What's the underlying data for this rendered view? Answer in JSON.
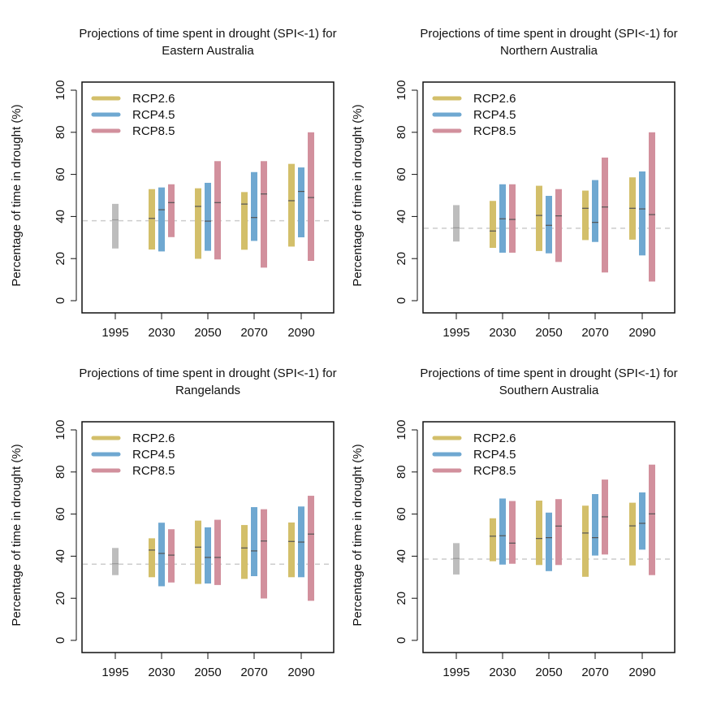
{
  "chart_data": [
    {
      "type": "bar",
      "subtype": "range-bars-with-median",
      "title": "Projections of time spent in drought (SPI<-1) for",
      "subtitle": "Eastern Australia",
      "xlabel": "",
      "ylabel": "Percentage of time in drought (%)",
      "ylim": [
        0,
        100
      ],
      "yticks": [
        0,
        20,
        40,
        60,
        80,
        100
      ],
      "categories": [
        "1995",
        "2030",
        "2050",
        "2070",
        "2090"
      ],
      "baseline_reference": 38,
      "baseline": {
        "name": "1995",
        "min": 24.8,
        "median": 38.4,
        "max": 46
      },
      "series": [
        {
          "name": "RCP2.6",
          "color": "#d3bf6a",
          "min": [
            null,
            24.3,
            19.9,
            24.2,
            25.7
          ],
          "median": [
            null,
            39.1,
            44.8,
            45.9,
            47.5
          ],
          "max": [
            null,
            53,
            53.4,
            51.6,
            65
          ]
        },
        {
          "name": "RCP4.5",
          "color": "#6fa8d1",
          "min": [
            null,
            23.4,
            23.7,
            28.4,
            30.1
          ],
          "median": [
            null,
            43.2,
            37.8,
            39.5,
            51.9
          ],
          "max": [
            null,
            53.8,
            56,
            61.1,
            63.3
          ]
        },
        {
          "name": "RCP8.5",
          "color": "#d2909d",
          "min": [
            null,
            30.2,
            19.6,
            15.7,
            18.9
          ],
          "median": [
            null,
            46.6,
            46.6,
            50.7,
            49
          ],
          "max": [
            null,
            55.3,
            66.3,
            66.3,
            80
          ]
        }
      ],
      "legend": "top-left",
      "grid": false
    },
    {
      "type": "bar",
      "subtype": "range-bars-with-median",
      "title": "Projections of time spent in drought (SPI<-1) for",
      "subtitle": "Northern Australia",
      "xlabel": "",
      "ylabel": "Percentage of time in drought (%)",
      "ylim": [
        0,
        100
      ],
      "yticks": [
        0,
        20,
        40,
        60,
        80,
        100
      ],
      "categories": [
        "1995",
        "2030",
        "2050",
        "2070",
        "2090"
      ],
      "baseline_reference": 34.4,
      "baseline": {
        "name": "1995",
        "min": 28.1,
        "median": 34.6,
        "max": 45.4
      },
      "series": [
        {
          "name": "RCP2.6",
          "color": "#d3bf6a",
          "min": [
            null,
            25.1,
            23.6,
            28.8,
            29
          ],
          "median": [
            null,
            33.1,
            40.5,
            43.9,
            43.9
          ],
          "max": [
            null,
            47.4,
            54.6,
            52.3,
            58.6
          ]
        },
        {
          "name": "RCP4.5",
          "color": "#6fa8d1",
          "min": [
            null,
            22.8,
            22.5,
            27.9,
            21.5
          ],
          "median": [
            null,
            38.9,
            35.8,
            37.2,
            43.6
          ],
          "max": [
            null,
            55.3,
            49.8,
            57.3,
            61.4
          ]
        },
        {
          "name": "RCP8.5",
          "color": "#d2909d",
          "min": [
            null,
            22.8,
            18.4,
            13.4,
            9.1
          ],
          "median": [
            null,
            38.6,
            40.3,
            44.5,
            40.9
          ],
          "max": [
            null,
            55.3,
            53,
            68,
            80
          ]
        }
      ],
      "legend": "top-left",
      "grid": false
    },
    {
      "type": "bar",
      "subtype": "range-bars-with-median",
      "title": "Projections of time spent in drought (SPI<-1) for",
      "subtitle": "Rangelands",
      "xlabel": "",
      "ylabel": "Percentage of time in drought (%)",
      "ylim": [
        0,
        100
      ],
      "yticks": [
        0,
        20,
        40,
        60,
        80,
        100
      ],
      "categories": [
        "1995",
        "2030",
        "2050",
        "2070",
        "2090"
      ],
      "baseline_reference": 36.2,
      "baseline": {
        "name": "1995",
        "min": 31,
        "median": 36.4,
        "max": 43.9
      },
      "series": [
        {
          "name": "RCP2.6",
          "color": "#d3bf6a",
          "min": [
            null,
            30,
            26.8,
            29.2,
            30
          ],
          "median": [
            null,
            42.9,
            44.3,
            43.9,
            47
          ],
          "max": [
            null,
            48.5,
            56.9,
            54.8,
            56
          ]
        },
        {
          "name": "RCP4.5",
          "color": "#6fa8d1",
          "min": [
            null,
            25.7,
            27,
            30.5,
            30
          ],
          "median": [
            null,
            41.3,
            39.4,
            42.5,
            46.7
          ],
          "max": [
            null,
            55.9,
            53.7,
            63.3,
            63.6
          ]
        },
        {
          "name": "RCP8.5",
          "color": "#d2909d",
          "min": [
            null,
            27.5,
            26.3,
            19.9,
            18.8
          ],
          "median": [
            null,
            40.5,
            39.4,
            47.2,
            50.5
          ],
          "max": [
            null,
            52.8,
            57.3,
            62.3,
            68.7
          ]
        }
      ],
      "legend": "top-left",
      "grid": false
    },
    {
      "type": "bar",
      "subtype": "range-bars-with-median",
      "title": "Projections of time spent in drought (SPI<-1) for",
      "subtitle": "Southern Australia",
      "xlabel": "",
      "ylabel": "Percentage of time in drought (%)",
      "ylim": [
        0,
        100
      ],
      "yticks": [
        0,
        20,
        40,
        60,
        80,
        100
      ],
      "categories": [
        "1995",
        "2030",
        "2050",
        "2070",
        "2090"
      ],
      "baseline_reference": 38.6,
      "baseline": {
        "name": "1995",
        "min": 31.3,
        "median": 38.9,
        "max": 46.2
      },
      "series": [
        {
          "name": "RCP2.6",
          "color": "#d3bf6a",
          "min": [
            null,
            37.6,
            35.8,
            30.2,
            35.6
          ],
          "median": [
            null,
            49.5,
            48.4,
            51,
            54.4
          ],
          "max": [
            null,
            58,
            66.4,
            64,
            65.4
          ]
        },
        {
          "name": "RCP4.5",
          "color": "#6fa8d1",
          "min": [
            null,
            36,
            32.9,
            40.3,
            43.1
          ],
          "median": [
            null,
            49.7,
            48.8,
            48.8,
            55.6
          ],
          "max": [
            null,
            67.4,
            60.7,
            69.5,
            70.3
          ]
        },
        {
          "name": "RCP8.5",
          "color": "#d2909d",
          "min": [
            null,
            36.4,
            35.8,
            40.8,
            31
          ],
          "median": [
            null,
            46.2,
            54.3,
            58.7,
            60.1
          ],
          "max": [
            null,
            66.2,
            67.1,
            76.4,
            83.5
          ]
        }
      ],
      "legend": "top-left",
      "grid": false
    }
  ],
  "colors": {
    "baseline": "#bdbdbd",
    "median_tick": "#555555",
    "reference_line": "#cccccc",
    "axis": "#111111"
  }
}
